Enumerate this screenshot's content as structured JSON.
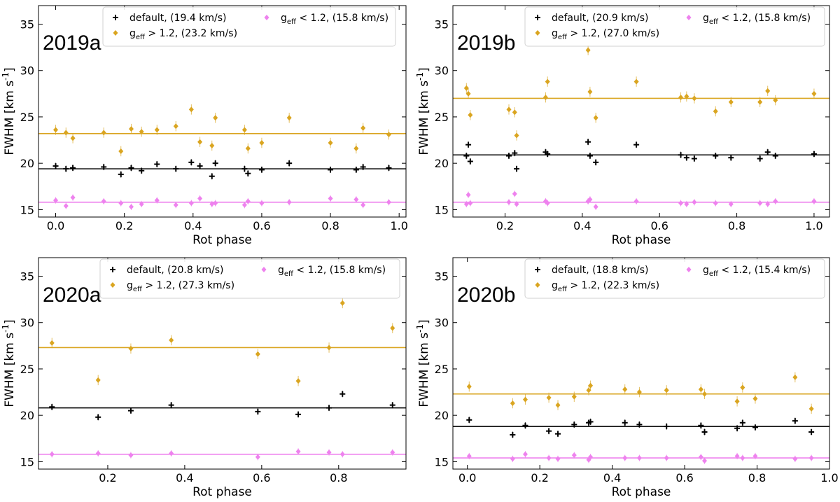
{
  "colors": {
    "default": "#000000",
    "high": "#daa520",
    "low": "#ee82ee"
  },
  "chart_data": [
    {
      "type": "scatter",
      "panel_label": "2019a",
      "xlabel": "Rot phase",
      "ylabel": "FWHM [km s$^{-1}$]",
      "xlim": [
        -0.05,
        1.02
      ],
      "ylim": [
        14.2,
        37
      ],
      "xticks": [
        0.0,
        0.2,
        0.4,
        0.6,
        0.8,
        1.0
      ],
      "xtick_labels": [
        "0.0",
        "0.2",
        "0.4",
        "0.6",
        "0.8",
        "1.0"
      ],
      "yticks": [
        15,
        20,
        25,
        30,
        35
      ],
      "legend_location": "top",
      "series": [
        {
          "key": "default",
          "name": "default, (19.4 km/s)",
          "mean": 19.4,
          "x": [
            0.0,
            0.03,
            0.05,
            0.14,
            0.19,
            0.22,
            0.25,
            0.295,
            0.35,
            0.395,
            0.42,
            0.455,
            0.465,
            0.55,
            0.56,
            0.6,
            0.68,
            0.8,
            0.875,
            0.895,
            0.97
          ],
          "y": [
            19.7,
            19.4,
            19.5,
            19.6,
            18.8,
            19.5,
            19.2,
            19.9,
            19.4,
            20.1,
            19.7,
            18.6,
            20.0,
            19.4,
            18.9,
            19.3,
            20.0,
            19.3,
            19.3,
            19.6,
            19.5
          ]
        },
        {
          "key": "high",
          "name": "g_eff > 1.2, (23.2 km/s)",
          "mean": 23.2,
          "x": [
            0.0,
            0.03,
            0.05,
            0.14,
            0.19,
            0.22,
            0.25,
            0.295,
            0.35,
            0.395,
            0.42,
            0.455,
            0.465,
            0.55,
            0.56,
            0.6,
            0.68,
            0.8,
            0.875,
            0.895,
            0.97
          ],
          "y": [
            23.6,
            23.3,
            22.7,
            23.3,
            21.3,
            23.7,
            23.4,
            23.6,
            24.0,
            25.8,
            22.3,
            21.9,
            24.9,
            23.6,
            21.6,
            22.2,
            24.9,
            22.2,
            21.6,
            23.8,
            23.1
          ]
        },
        {
          "key": "low",
          "name": "g_eff < 1.2, (15.8 km/s)",
          "mean": 15.8,
          "x": [
            0.0,
            0.03,
            0.05,
            0.14,
            0.19,
            0.22,
            0.25,
            0.295,
            0.35,
            0.395,
            0.42,
            0.455,
            0.465,
            0.55,
            0.56,
            0.6,
            0.68,
            0.8,
            0.875,
            0.895,
            0.97
          ],
          "y": [
            16.0,
            15.4,
            16.3,
            15.9,
            15.7,
            15.3,
            15.6,
            16.0,
            15.5,
            15.7,
            16.2,
            15.6,
            15.7,
            15.5,
            15.9,
            15.7,
            15.8,
            16.2,
            16.1,
            15.5,
            15.8
          ]
        }
      ]
    },
    {
      "type": "scatter",
      "panel_label": "2019b",
      "xlabel": "Rot phase",
      "ylabel": "FWHM [km s$^{-1}$]",
      "xlim": [
        0.065,
        1.04
      ],
      "ylim": [
        14.2,
        37
      ],
      "xticks": [
        0.2,
        0.4,
        0.6,
        0.8,
        1.0
      ],
      "xtick_labels": [
        "0.2",
        "0.4",
        "0.6",
        "0.8",
        "1.0"
      ],
      "yticks": [
        15,
        20,
        25,
        30,
        35
      ],
      "legend_location": "top",
      "series": [
        {
          "key": "default",
          "name": "default, (20.9 km/s)",
          "mean": 20.9,
          "x": [
            0.1,
            0.105,
            0.11,
            0.21,
            0.225,
            0.23,
            0.305,
            0.31,
            0.415,
            0.42,
            0.435,
            0.54,
            0.655,
            0.67,
            0.69,
            0.745,
            0.785,
            0.86,
            0.88,
            0.9,
            1.0
          ],
          "y": [
            20.8,
            22.0,
            20.2,
            20.8,
            21.1,
            19.4,
            21.2,
            21.0,
            22.3,
            20.8,
            20.1,
            22.0,
            20.9,
            20.6,
            20.5,
            20.8,
            20.6,
            20.5,
            21.2,
            20.8,
            21.0
          ]
        },
        {
          "key": "high",
          "name": "g_eff > 1.2, (27.0 km/s)",
          "mean": 27.0,
          "x": [
            0.1,
            0.105,
            0.11,
            0.21,
            0.225,
            0.23,
            0.305,
            0.31,
            0.415,
            0.42,
            0.435,
            0.54,
            0.655,
            0.67,
            0.69,
            0.745,
            0.785,
            0.86,
            0.88,
            0.9,
            1.0
          ],
          "y": [
            28.1,
            27.5,
            25.2,
            25.8,
            25.5,
            23.0,
            27.1,
            28.8,
            32.2,
            27.7,
            24.9,
            28.8,
            27.1,
            27.2,
            27.0,
            25.6,
            26.6,
            26.6,
            27.8,
            26.8,
            27.5
          ]
        },
        {
          "key": "low",
          "name": "g_eff < 1.2, (15.8 km/s)",
          "mean": 15.8,
          "x": [
            0.1,
            0.105,
            0.11,
            0.21,
            0.225,
            0.23,
            0.305,
            0.31,
            0.415,
            0.42,
            0.435,
            0.54,
            0.655,
            0.67,
            0.69,
            0.745,
            0.785,
            0.86,
            0.88,
            0.9,
            1.0
          ],
          "y": [
            15.6,
            16.6,
            15.7,
            15.8,
            16.7,
            15.6,
            15.9,
            15.7,
            15.9,
            16.1,
            15.3,
            15.9,
            15.7,
            15.6,
            15.8,
            15.7,
            15.6,
            15.7,
            15.6,
            15.9,
            15.9
          ]
        }
      ]
    },
    {
      "type": "scatter",
      "panel_label": "2020a",
      "xlabel": "Rot phase",
      "ylabel": "FWHM [km s$^{-1}$]",
      "xlim": [
        0.02,
        0.975
      ],
      "ylim": [
        14.2,
        37
      ],
      "xticks": [
        0.2,
        0.4,
        0.6,
        0.8
      ],
      "xtick_labels": [
        "0.2",
        "0.4",
        "0.6",
        "0.8"
      ],
      "yticks": [
        15,
        20,
        25,
        30,
        35
      ],
      "legend_location": "top",
      "series": [
        {
          "key": "default",
          "name": "default, (20.8 km/s)",
          "mean": 20.8,
          "x": [
            0.055,
            0.175,
            0.26,
            0.365,
            0.59,
            0.695,
            0.775,
            0.81,
            0.94
          ],
          "y": [
            20.9,
            19.8,
            20.5,
            21.1,
            20.4,
            20.1,
            20.8,
            22.3,
            21.1
          ]
        },
        {
          "key": "high",
          "name": "g_eff > 1.2, (27.3 km/s)",
          "mean": 27.3,
          "x": [
            0.055,
            0.175,
            0.26,
            0.365,
            0.59,
            0.695,
            0.775,
            0.81,
            0.94
          ],
          "y": [
            27.8,
            23.8,
            27.2,
            28.1,
            26.6,
            23.7,
            27.3,
            32.1,
            29.4
          ]
        },
        {
          "key": "low",
          "name": "g_eff < 1.2, (15.8 km/s)",
          "mean": 15.8,
          "x": [
            0.055,
            0.175,
            0.26,
            0.365,
            0.59,
            0.695,
            0.775,
            0.81,
            0.94
          ],
          "y": [
            15.8,
            15.9,
            15.7,
            15.9,
            15.5,
            16.1,
            16.0,
            15.8,
            16.0
          ]
        }
      ]
    },
    {
      "type": "scatter",
      "panel_label": "2020b",
      "xlabel": "Rot phase",
      "ylabel": "FWHM [km s$^{-1}$]",
      "xlim": [
        -0.04,
        1.0
      ],
      "ylim": [
        14.2,
        37
      ],
      "xticks": [
        0.0,
        0.2,
        0.4,
        0.6,
        0.8,
        1.0
      ],
      "xtick_labels": [
        "0.0",
        "0.2",
        "0.4",
        "0.6",
        "0.8",
        "1.0"
      ],
      "yticks": [
        15,
        20,
        25,
        30,
        35
      ],
      "legend_location": "top",
      "series": [
        {
          "key": "default",
          "name": "default, (18.8 km/s)",
          "mean": 18.8,
          "x": [
            0.005,
            0.125,
            0.16,
            0.225,
            0.25,
            0.295,
            0.335,
            0.34,
            0.435,
            0.475,
            0.55,
            0.645,
            0.655,
            0.745,
            0.76,
            0.795,
            0.905,
            0.95
          ],
          "y": [
            19.5,
            17.9,
            18.9,
            18.3,
            18.0,
            19.0,
            19.2,
            19.3,
            19.2,
            19.0,
            18.8,
            18.9,
            18.2,
            18.6,
            19.2,
            18.7,
            19.4,
            18.2
          ]
        },
        {
          "key": "high",
          "name": "g_eff > 1.2, (22.3 km/s)",
          "mean": 22.3,
          "x": [
            0.005,
            0.125,
            0.16,
            0.225,
            0.25,
            0.295,
            0.335,
            0.34,
            0.435,
            0.475,
            0.55,
            0.645,
            0.655,
            0.745,
            0.76,
            0.795,
            0.905,
            0.95
          ],
          "y": [
            23.1,
            21.3,
            21.7,
            21.9,
            21.1,
            22.0,
            22.7,
            23.2,
            22.8,
            22.5,
            22.7,
            22.8,
            22.3,
            21.5,
            23.0,
            21.8,
            24.1,
            20.7
          ]
        },
        {
          "key": "low",
          "name": "g_eff < 1.2, (15.4 km/s)",
          "mean": 15.4,
          "x": [
            0.005,
            0.125,
            0.16,
            0.225,
            0.25,
            0.295,
            0.335,
            0.34,
            0.435,
            0.475,
            0.55,
            0.645,
            0.655,
            0.745,
            0.76,
            0.795,
            0.905,
            0.95
          ],
          "y": [
            15.6,
            15.3,
            15.8,
            15.4,
            15.3,
            15.7,
            15.2,
            15.5,
            15.4,
            15.4,
            15.4,
            15.5,
            15.1,
            15.6,
            15.4,
            15.6,
            15.3,
            15.4
          ]
        }
      ]
    }
  ]
}
